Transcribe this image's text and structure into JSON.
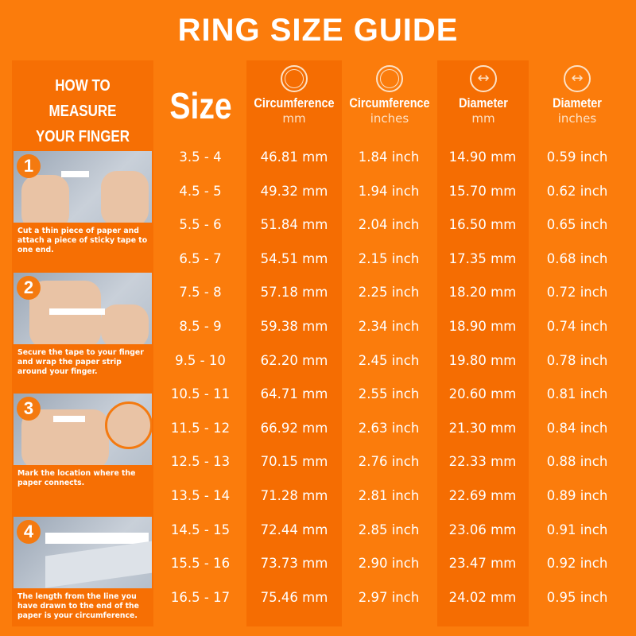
{
  "title": "RING SIZE GUIDE",
  "how_to": {
    "heading_line1": "HOW TO MEASURE",
    "heading_line2": "YOUR FINGER SIZE",
    "steps": [
      {
        "number": "1",
        "caption": "Cut a thin piece of paper and attach a piece of sticky tape to one end."
      },
      {
        "number": "2",
        "caption": "Secure the tape to your finger and wrap the paper strip around your finger."
      },
      {
        "number": "3",
        "caption": "Mark the location where the paper connects."
      },
      {
        "number": "4",
        "caption": "The length from the line you have drawn to the end of the paper is your circumference."
      }
    ]
  },
  "table": {
    "size_header": "Size",
    "columns": [
      {
        "label": "Circumference",
        "unit": "mm",
        "icon": "ring-circumference-icon"
      },
      {
        "label": "Circumference",
        "unit": "inches",
        "icon": "ring-circumference-icon"
      },
      {
        "label": "Diameter",
        "unit": "mm",
        "icon": "ring-diameter-icon"
      },
      {
        "label": "Diameter",
        "unit": "inches",
        "icon": "ring-diameter-icon"
      }
    ],
    "rows": [
      [
        "3.5 - 4",
        "46.81 mm",
        "1.84 inch",
        "14.90 mm",
        "0.59 inch"
      ],
      [
        "4.5 - 5",
        "49.32 mm",
        "1.94 inch",
        "15.70 mm",
        "0.62 inch"
      ],
      [
        "5.5 - 6",
        "51.84 mm",
        "2.04 inch",
        "16.50 mm",
        "0.65 inch"
      ],
      [
        "6.5 - 7",
        "54.51 mm",
        "2.15 inch",
        "17.35 mm",
        "0.68 inch"
      ],
      [
        "7.5 - 8",
        "57.18 mm",
        "2.25 inch",
        "18.20 mm",
        "0.72 inch"
      ],
      [
        "8.5 - 9",
        "59.38 mm",
        "2.34 inch",
        "18.90 mm",
        "0.74 inch"
      ],
      [
        "9.5 - 10",
        "62.20 mm",
        "2.45 inch",
        "19.80 mm",
        "0.78 inch"
      ],
      [
        "10.5 - 11",
        "64.71 mm",
        "2.55 inch",
        "20.60 mm",
        "0.81 inch"
      ],
      [
        "11.5 - 12",
        "66.92 mm",
        "2.63 inch",
        "21.30 mm",
        "0.84 inch"
      ],
      [
        "12.5 - 13",
        "70.15 mm",
        "2.76 inch",
        "22.33 mm",
        "0.88 inch"
      ],
      [
        "13.5 - 14",
        "71.28 mm",
        "2.81 inch",
        "22.69 mm",
        "0.89 inch"
      ],
      [
        "14.5 - 15",
        "72.44 mm",
        "2.85 inch",
        "23.06 mm",
        "0.91 inch"
      ],
      [
        "15.5 - 16",
        "73.73 mm",
        "2.90 inch",
        "23.47 mm",
        "0.92 inch"
      ],
      [
        "16.5 - 17",
        "75.46 mm",
        "2.97 inch",
        "24.02 mm",
        "0.95 inch"
      ]
    ]
  },
  "colors": {
    "background": "#fb7c0c",
    "band": "#f56d02"
  }
}
